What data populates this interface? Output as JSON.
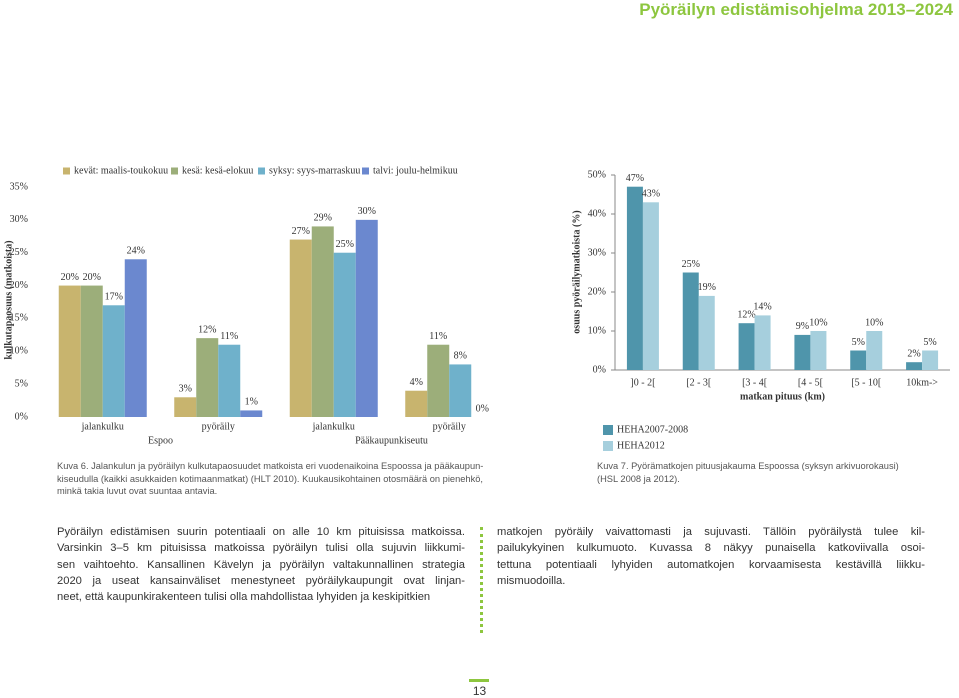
{
  "header": {
    "title": "Pyöräilyn edistämisohjelma 2013–2024"
  },
  "chart_data": [
    {
      "type": "bar",
      "y_label": "kulkutapaosuus (matkoista)",
      "categories": [
        "jalankulku",
        "pyöräily",
        "jalankulku",
        "pyöräily"
      ],
      "category_groups": [
        "Espoo",
        "Pääkaupunkiseutu"
      ],
      "series": [
        {
          "name": "kevät: maalis-toukokuu",
          "color": "#c8b46e",
          "values": [
            20,
            3,
            27,
            4
          ],
          "value_labels": [
            "20%",
            "3%",
            "27%",
            "4%"
          ]
        },
        {
          "name": "kesä: kesä-elokuu",
          "color": "#9cae7a",
          "values": [
            20,
            12,
            29,
            11
          ],
          "value_labels": [
            "20%",
            "12%",
            "29%",
            "11%"
          ]
        },
        {
          "name": "syksy: syys-marraskuu",
          "color": "#6fb1cb",
          "values": [
            17,
            11,
            25,
            8
          ],
          "value_labels": [
            "17%",
            "11%",
            "25%",
            "8%"
          ]
        },
        {
          "name": "talvi: joulu-helmikuu",
          "color": "#6b88cf",
          "values": [
            24,
            1,
            30,
            0
          ],
          "value_labels": [
            "24%",
            "1%",
            "30%",
            "0%"
          ]
        }
      ],
      "ylim": [
        0,
        35
      ],
      "yticks": [
        {
          "value": 0,
          "label": "0%"
        },
        {
          "value": 5,
          "label": "5%"
        },
        {
          "value": 10,
          "label": "10%"
        },
        {
          "value": 15,
          "label": "15%"
        },
        {
          "value": 20,
          "label": "20%"
        },
        {
          "value": 25,
          "label": "25%"
        },
        {
          "value": 30,
          "label": "30%"
        },
        {
          "value": 35,
          "label": "35%"
        }
      ],
      "grid": false,
      "legend": "top"
    },
    {
      "type": "bar",
      "y_label": "osuus pyöräilymatkoista (%)",
      "x_label": "matkan pituus (km)",
      "categories": [
        "]0 - 2[",
        "[2 - 3[",
        "[3 - 4[",
        "[4 - 5[",
        "[5 - 10[",
        "10km->"
      ],
      "series": [
        {
          "name": "HEHA2007-2008",
          "color": "#4f95ab",
          "values": [
            47,
            25,
            12,
            9,
            5,
            2
          ],
          "value_labels": [
            "47%",
            "25%",
            "12%",
            "9%",
            "5%",
            "2%"
          ]
        },
        {
          "name": "HEHA2012",
          "color": "#a6cfdd",
          "values": [
            43,
            19,
            14,
            10,
            10,
            5
          ],
          "value_labels": [
            "43%",
            "19%",
            "14%",
            "10%",
            "10%",
            "5%"
          ]
        }
      ],
      "ylim": [
        0,
        50
      ],
      "yticks": [
        {
          "value": 0,
          "label": "0%"
        },
        {
          "value": 10,
          "label": "10%"
        },
        {
          "value": 20,
          "label": "20%"
        },
        {
          "value": 30,
          "label": "30%"
        },
        {
          "value": 40,
          "label": "40%"
        },
        {
          "value": 50,
          "label": "50%"
        }
      ],
      "grid": false,
      "legend": "bottom"
    }
  ],
  "captions": [
    [
      "Kuva 6. Jalankulun ja pyöräilyn kulkutapaosuudet matkoista eri vuodenaikoina Espoossa ja pääkaupun-",
      "kiseudulla (kaikki asukkaiden kotimaanmatkat) (HLT 2010). Kuukausikohtainen otosmäärä on pienehkö,",
      "minkä takia luvut ovat suuntaa antavia."
    ],
    [
      "Kuva 7. Pyörämatkojen pituusjakauma Espoossa (syksyn arkivuorokausi)",
      "(HSL 2008 ja 2012)."
    ]
  ],
  "body": {
    "left": [
      "Pyöräilyn edistämisen suurin potentiaali on alle 10 km pituisissa matkoissa.",
      "Varsinkin 3–5 km pituisissa matkoissa pyöräilyn tulisi olla sujuvin liikkumi-",
      "sen vaihtoehto. Kansallinen Kävelyn ja pyöräilyn valtakunnallinen strategia",
      "2020 ja useat kansainväliset menestyneet pyöräilykaupungit ovat linjan-",
      "neet, että kaupunkirakenteen tulisi olla mahdollistaa lyhyiden ja keskipitkien"
    ],
    "right": [
      "matkojen pyöräily vaivattomasti ja sujuvasti. Tällöin pyöräilystä tulee kil-",
      "pailukykyinen kulkumuoto. Kuvassa 8 näkyy punaisella katkoviivalla osoi-",
      "tettuna potentiaali lyhyiden automatkojen korvaamisesta kestävillä liikku-",
      "mismuodoilla."
    ]
  },
  "page_number": "13"
}
